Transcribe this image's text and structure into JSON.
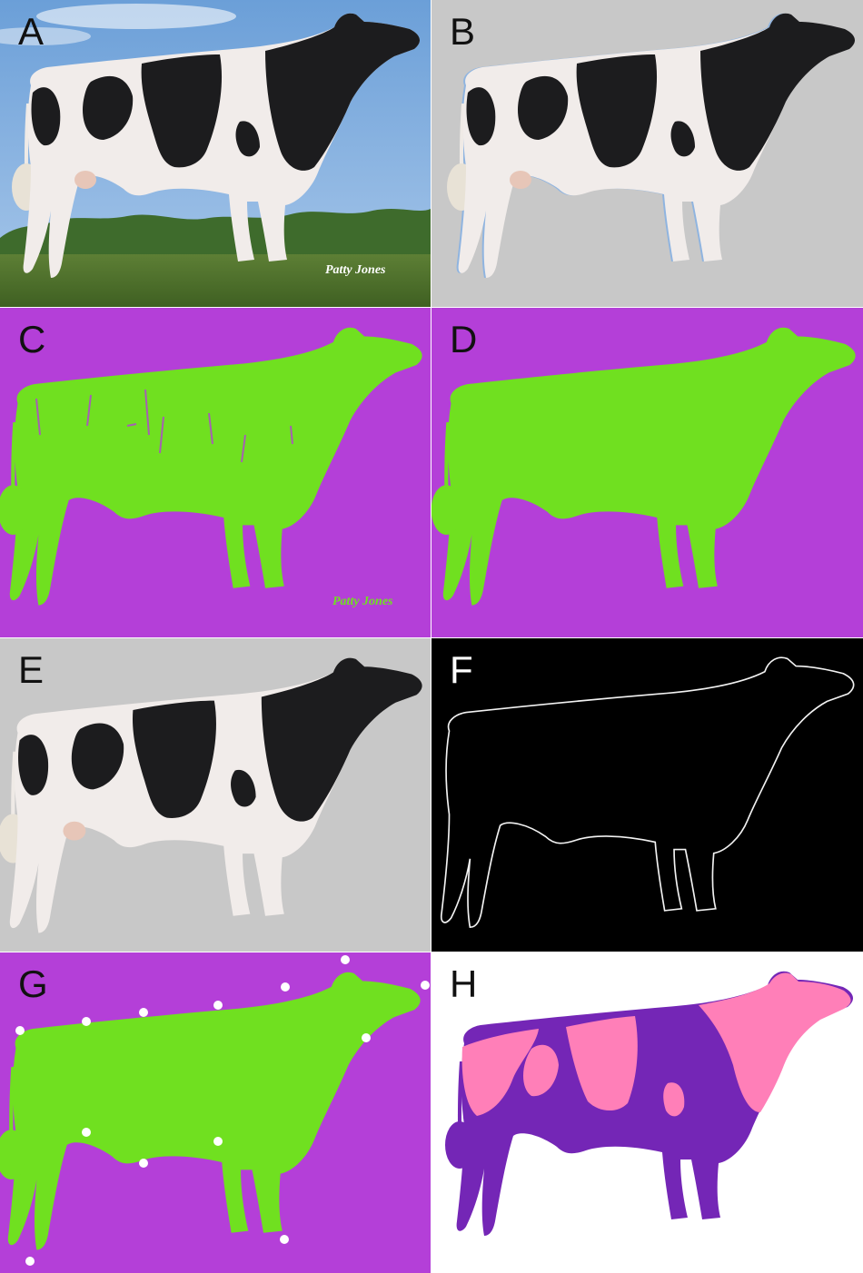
{
  "panels": [
    {
      "id": "A",
      "label": "A",
      "content": "photo",
      "background": "sky-field",
      "signature": "Patty Jones"
    },
    {
      "id": "B",
      "label": "B",
      "content": "photo-segmented",
      "background": "#c8c8c8"
    },
    {
      "id": "C",
      "label": "C",
      "content": "mask-noisy",
      "background": "#b43fd8",
      "signature": "Patty Jones"
    },
    {
      "id": "D",
      "label": "D",
      "content": "mask-clean",
      "background": "#b43fd8"
    },
    {
      "id": "E",
      "label": "E",
      "content": "photo-segmented",
      "background": "#c8c8c8"
    },
    {
      "id": "F",
      "label": "F",
      "content": "contour",
      "background": "#000000"
    },
    {
      "id": "G",
      "label": "G",
      "content": "mask-keypoints",
      "background": "#b43fd8"
    },
    {
      "id": "H",
      "label": "H",
      "content": "color-classes",
      "background": "#ffffff"
    }
  ],
  "colors": {
    "mask_green": "#70e020",
    "mask_purple": "#b43fd8",
    "gray_bg": "#c8c8c8",
    "cow_white": "#f1ecea",
    "cow_black": "#1c1c1e",
    "class_pink": "#ff7fb8",
    "class_violet": "#7426b6"
  }
}
